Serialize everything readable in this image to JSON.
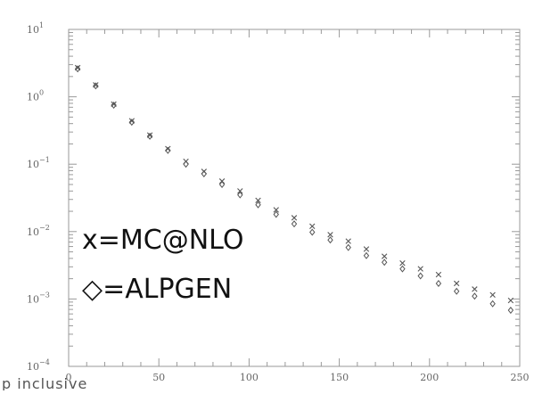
{
  "chart_data": {
    "type": "scatter",
    "xlim": [
      0,
      250
    ],
    "ylim": [
      0.0001,
      10
    ],
    "yscale": "log",
    "x_ticks": [
      0,
      50,
      100,
      150,
      200,
      250
    ],
    "x_tick_labels": [
      "0",
      "50",
      "100",
      "150",
      "200",
      "250"
    ],
    "y_ticks": [
      10,
      1,
      0.1,
      0.01,
      0.001,
      0.0001
    ],
    "y_tick_labels": [
      {
        "base": "10",
        "exp": "1"
      },
      {
        "base": "10",
        "exp": "0"
      },
      {
        "base": "10",
        "exp": "−1"
      },
      {
        "base": "10",
        "exp": "−2"
      },
      {
        "base": "10",
        "exp": "−3"
      },
      {
        "base": "10",
        "exp": "−4"
      }
    ],
    "grid": false,
    "legend_position": "center-left",
    "series": [
      {
        "name": "MC@NLO",
        "marker": "x",
        "x": [
          5,
          15,
          25,
          35,
          45,
          55,
          65,
          75,
          85,
          95,
          105,
          115,
          125,
          135,
          145,
          155,
          165,
          175,
          185,
          195,
          205,
          215,
          225,
          235,
          245
        ],
        "y": [
          2.7,
          1.5,
          0.78,
          0.44,
          0.27,
          0.17,
          0.11,
          0.078,
          0.056,
          0.04,
          0.029,
          0.021,
          0.016,
          0.012,
          0.009,
          0.0072,
          0.0055,
          0.0043,
          0.0034,
          0.0028,
          0.0023,
          0.0017,
          0.0014,
          0.00115,
          0.00095
        ]
      },
      {
        "name": "ALPGEN",
        "marker": "diamond",
        "x": [
          5,
          15,
          25,
          35,
          45,
          55,
          65,
          75,
          85,
          95,
          105,
          115,
          125,
          135,
          145,
          155,
          165,
          175,
          185,
          195,
          205,
          215,
          225,
          235,
          245
        ],
        "y": [
          2.6,
          1.45,
          0.75,
          0.42,
          0.26,
          0.16,
          0.1,
          0.072,
          0.05,
          0.035,
          0.025,
          0.018,
          0.013,
          0.0098,
          0.0075,
          0.0058,
          0.0044,
          0.0035,
          0.0028,
          0.0022,
          0.0017,
          0.0013,
          0.0011,
          0.00085,
          0.00068
        ]
      }
    ],
    "legend": [
      {
        "symbol": "x",
        "text": "=MC@NLO"
      },
      {
        "symbol": "◇",
        "text": "=ALPGEN"
      }
    ],
    "caption": "p inclusive"
  },
  "colors": {
    "background": "#ffffff",
    "axis": "#9a9a9a",
    "marker": "#555555",
    "text": "#111111"
  }
}
